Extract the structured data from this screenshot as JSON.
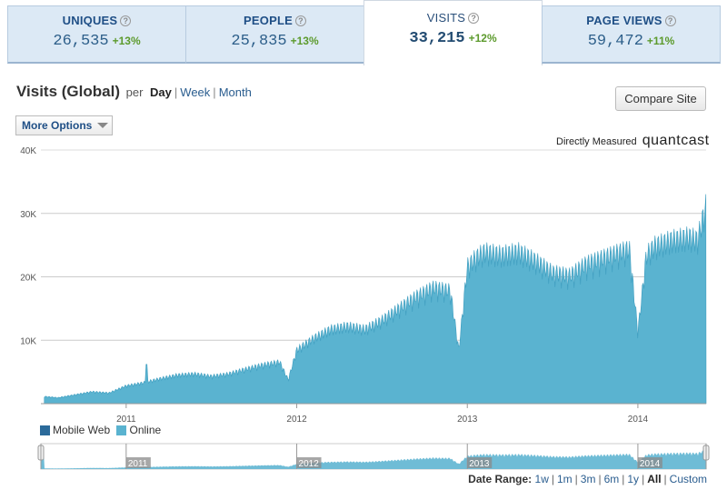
{
  "tabs": [
    {
      "label": "UNIQUES",
      "value": "26,535",
      "change": "+13%",
      "active": false
    },
    {
      "label": "PEOPLE",
      "value": "25,835",
      "change": "+13%",
      "active": false
    },
    {
      "label": "VISITS",
      "value": "33,215",
      "change": "+12%",
      "active": true
    },
    {
      "label": "PAGE VIEWS",
      "value": "59,472",
      "change": "+11%",
      "active": false
    }
  ],
  "help_glyph": "?",
  "header": {
    "title": "Visits (Global)",
    "per": "per",
    "periods": [
      "Day",
      "Week",
      "Month"
    ],
    "compare_button": "Compare Site",
    "more_options": "More Options",
    "directly_measured": "Directly Measured",
    "brand": "quantcast"
  },
  "legend": [
    {
      "label": "Mobile Web",
      "color": "#2b6a9a"
    },
    {
      "label": "Online",
      "color": "#5ab3d0"
    }
  ],
  "date_range": {
    "label": "Date Range:",
    "options": [
      "1w",
      "1m",
      "3m",
      "6m",
      "1y",
      "All",
      "Custom"
    ],
    "active": "All"
  },
  "chart_data": {
    "type": "area",
    "title": "Visits (Global)",
    "xlabel": "",
    "ylabel": "",
    "ylim": [
      0,
      40000
    ],
    "yticks": [
      10000,
      20000,
      30000,
      40000
    ],
    "ytick_labels": [
      "10K",
      "20K",
      "30K",
      "40K"
    ],
    "xlim": [
      2010.5,
      2014.4
    ],
    "xticks": [
      2011,
      2012,
      2013,
      2014
    ],
    "xtick_labels": [
      "2011",
      "2012",
      "2013",
      "2014"
    ],
    "series": [
      {
        "name": "Online",
        "color": "#5ab3d0",
        "x": [
          2010.52,
          2010.6,
          2010.7,
          2010.8,
          2010.9,
          2011.0,
          2011.1,
          2011.2,
          2011.3,
          2011.4,
          2011.5,
          2011.6,
          2011.7,
          2011.8,
          2011.9,
          2011.95,
          2012.0,
          2012.1,
          2012.2,
          2012.3,
          2012.4,
          2012.5,
          2012.6,
          2012.7,
          2012.8,
          2012.9,
          2012.95,
          2013.0,
          2013.05,
          2013.1,
          2013.2,
          2013.3,
          2013.4,
          2013.5,
          2013.6,
          2013.7,
          2013.8,
          2013.9,
          2013.95,
          2014.0,
          2014.05,
          2014.1,
          2014.2,
          2014.3,
          2014.35,
          2014.38,
          2014.4
        ],
        "values": [
          1200,
          1000,
          1500,
          2000,
          1800,
          3000,
          3500,
          4200,
          4800,
          5000,
          4600,
          5000,
          5800,
          6500,
          7000,
          4000,
          9000,
          11000,
          12500,
          13000,
          12500,
          14000,
          16000,
          18000,
          19500,
          19000,
          9000,
          23000,
          24500,
          25500,
          25000,
          25500,
          24000,
          22000,
          21500,
          23500,
          24500,
          25500,
          26000,
          12000,
          25000,
          26500,
          27500,
          28000,
          27500,
          31000,
          33200
        ],
        "peaks": [
          [
            2011.12,
            6200
          ]
        ]
      },
      {
        "name": "Mobile Web",
        "color": "#2b6a9a",
        "x": [
          2010.52,
          2014.4
        ],
        "values": [
          0,
          0
        ]
      }
    ],
    "navigator": {
      "labels": [
        "2011",
        "2012",
        "2013",
        "2014"
      ]
    }
  }
}
